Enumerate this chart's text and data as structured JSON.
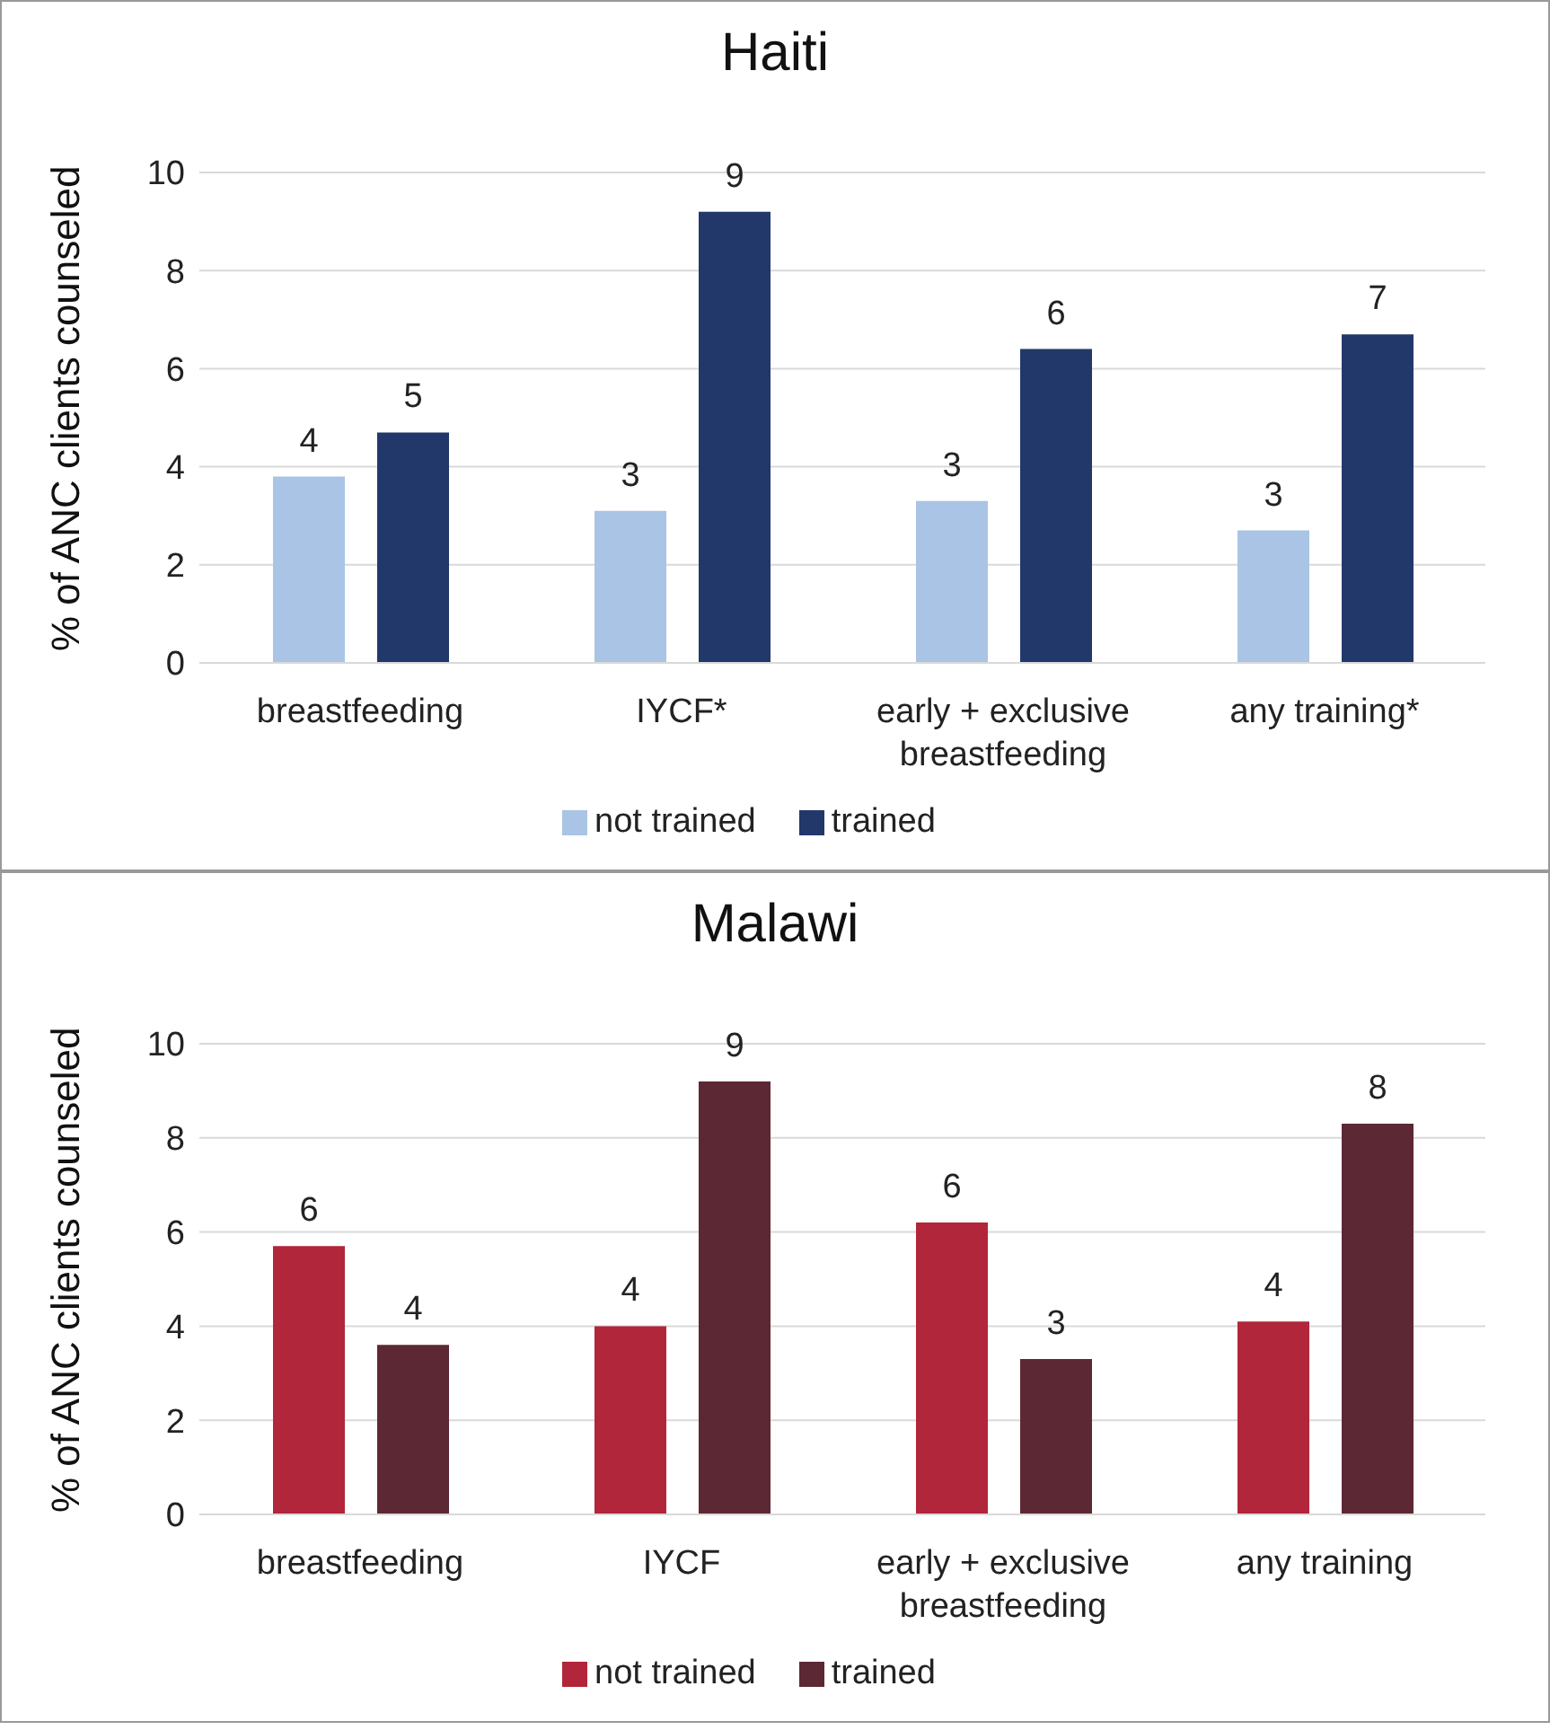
{
  "chart_data": [
    {
      "type": "bar",
      "title": "Haiti",
      "ylabel": "% of ANC clients counseled",
      "categories": [
        "breastfeeding",
        "IYCF*",
        "early + exclusive breastfeeding",
        "any training*"
      ],
      "series": [
        {
          "name": "not trained",
          "color": "#a9c4e4",
          "values": [
            3.8,
            3.1,
            3.3,
            2.7
          ],
          "value_labels": [
            "4",
            "3",
            "3",
            "3"
          ]
        },
        {
          "name": "trained",
          "color": "#22386a",
          "values": [
            4.7,
            9.2,
            6.4,
            6.7
          ],
          "value_labels": [
            "5",
            "9",
            "6",
            "7"
          ]
        }
      ],
      "ylim": [
        0,
        10
      ],
      "yticks": [
        0,
        2,
        4,
        6,
        8,
        10
      ],
      "grid": "y",
      "legend": "bottom"
    },
    {
      "type": "bar",
      "title": "Malawi",
      "ylabel": "% of ANC clients counseled",
      "categories": [
        "breastfeeding",
        "IYCF",
        "early + exclusive breastfeeding",
        "any training"
      ],
      "series": [
        {
          "name": "not trained",
          "color": "#b1263a",
          "values": [
            5.7,
            4.0,
            6.2,
            4.1
          ],
          "value_labels": [
            "6",
            "4",
            "6",
            "4"
          ]
        },
        {
          "name": "trained",
          "color": "#5c2833",
          "values": [
            3.6,
            9.2,
            3.3,
            8.3
          ],
          "value_labels": [
            "4",
            "9",
            "3",
            "8"
          ]
        }
      ],
      "ylim": [
        0,
        10
      ],
      "yticks": [
        0,
        2,
        4,
        6,
        8,
        10
      ],
      "grid": "y",
      "legend": "bottom"
    }
  ]
}
